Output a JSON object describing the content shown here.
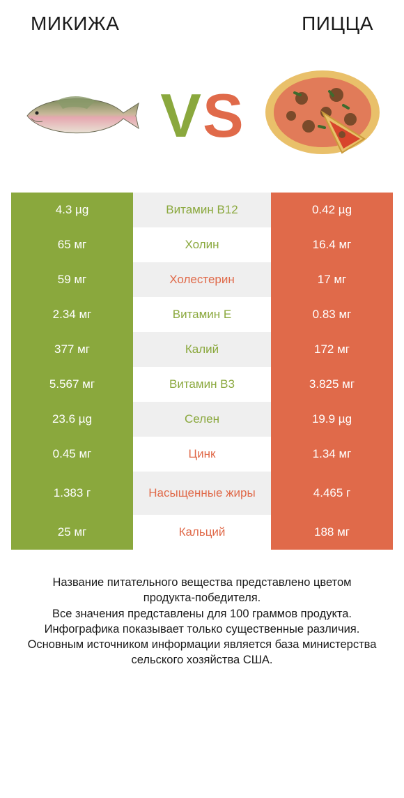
{
  "colors": {
    "green": "#8aa83d",
    "orange": "#e06a4a",
    "grey_row": "#efefef",
    "white_row": "#ffffff",
    "text": "#1a1a1a"
  },
  "layout": {
    "row_height_single": 50,
    "row_height_double": 62,
    "font_size_cell": 17,
    "font_size_title": 28,
    "font_size_vs": 88
  },
  "titles": {
    "left": "МИКИЖА",
    "right": "ПИЦЦА"
  },
  "vs": {
    "v": "V",
    "s": "S"
  },
  "rows": [
    {
      "left": "4.3 µg",
      "mid": "Витамин B12",
      "right": "0.42 µg",
      "winner": "left",
      "double": false
    },
    {
      "left": "65 мг",
      "mid": "Холин",
      "right": "16.4 мг",
      "winner": "left",
      "double": false
    },
    {
      "left": "59 мг",
      "mid": "Холестерин",
      "right": "17 мг",
      "winner": "right",
      "double": false
    },
    {
      "left": "2.34 мг",
      "mid": "Витамин E",
      "right": "0.83 мг",
      "winner": "left",
      "double": false
    },
    {
      "left": "377 мг",
      "mid": "Калий",
      "right": "172 мг",
      "winner": "left",
      "double": false
    },
    {
      "left": "5.567 мг",
      "mid": "Витамин B3",
      "right": "3.825 мг",
      "winner": "left",
      "double": false
    },
    {
      "left": "23.6 µg",
      "mid": "Селен",
      "right": "19.9 µg",
      "winner": "left",
      "double": false
    },
    {
      "left": "0.45 мг",
      "mid": "Цинк",
      "right": "1.34 мг",
      "winner": "right",
      "double": false
    },
    {
      "left": "1.383 г",
      "mid": "Насыщенные жиры",
      "right": "4.465 г",
      "winner": "right",
      "double": true
    },
    {
      "left": "25 мг",
      "mid": "Кальций",
      "right": "188 мг",
      "winner": "right",
      "double": false
    }
  ],
  "footer_lines": [
    "Название питательного вещества представлено цветом продукта-победителя.",
    "Все значения представлены для 100 граммов продукта.",
    "Инфографика показывает только существенные различия.",
    "Основным источником информации является база министерства сельского хозяйства США."
  ]
}
